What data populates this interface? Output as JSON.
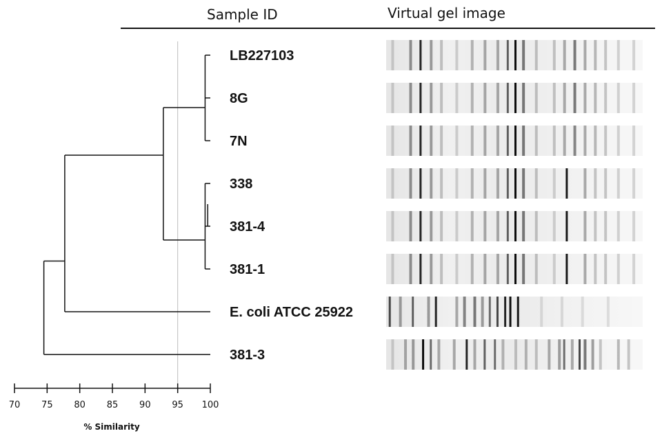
{
  "headers": {
    "sample_id": "Sample ID",
    "gel": "Virtual gel image"
  },
  "samples": [
    {
      "id": "LB227103",
      "bands": [
        [
          0.02,
          0.15
        ],
        [
          0.09,
          0.4
        ],
        [
          0.13,
          0.85
        ],
        [
          0.17,
          0.35
        ],
        [
          0.21,
          0.2
        ],
        [
          0.27,
          0.15
        ],
        [
          0.33,
          0.25
        ],
        [
          0.38,
          0.3
        ],
        [
          0.43,
          0.3
        ],
        [
          0.47,
          0.6
        ],
        [
          0.5,
          0.95
        ],
        [
          0.53,
          0.5
        ],
        [
          0.58,
          0.2
        ],
        [
          0.65,
          0.2
        ],
        [
          0.69,
          0.3
        ],
        [
          0.73,
          0.5
        ],
        [
          0.77,
          0.3
        ],
        [
          0.81,
          0.25
        ],
        [
          0.85,
          0.2
        ],
        [
          0.9,
          0.15
        ],
        [
          0.96,
          0.15
        ]
      ]
    },
    {
      "id": "8G",
      "bands": [
        [
          0.02,
          0.15
        ],
        [
          0.09,
          0.4
        ],
        [
          0.13,
          0.85
        ],
        [
          0.17,
          0.35
        ],
        [
          0.21,
          0.2
        ],
        [
          0.27,
          0.15
        ],
        [
          0.33,
          0.25
        ],
        [
          0.38,
          0.3
        ],
        [
          0.43,
          0.3
        ],
        [
          0.47,
          0.6
        ],
        [
          0.5,
          0.95
        ],
        [
          0.53,
          0.5
        ],
        [
          0.58,
          0.2
        ],
        [
          0.65,
          0.2
        ],
        [
          0.69,
          0.3
        ],
        [
          0.73,
          0.5
        ],
        [
          0.77,
          0.3
        ],
        [
          0.81,
          0.25
        ],
        [
          0.85,
          0.2
        ],
        [
          0.9,
          0.15
        ],
        [
          0.96,
          0.15
        ]
      ]
    },
    {
      "id": "7N",
      "bands": [
        [
          0.02,
          0.15
        ],
        [
          0.09,
          0.4
        ],
        [
          0.13,
          0.85
        ],
        [
          0.17,
          0.35
        ],
        [
          0.21,
          0.2
        ],
        [
          0.27,
          0.15
        ],
        [
          0.33,
          0.25
        ],
        [
          0.38,
          0.3
        ],
        [
          0.43,
          0.3
        ],
        [
          0.47,
          0.6
        ],
        [
          0.5,
          0.95
        ],
        [
          0.53,
          0.5
        ],
        [
          0.58,
          0.2
        ],
        [
          0.65,
          0.2
        ],
        [
          0.69,
          0.3
        ],
        [
          0.73,
          0.45
        ],
        [
          0.77,
          0.3
        ],
        [
          0.81,
          0.25
        ],
        [
          0.85,
          0.2
        ],
        [
          0.9,
          0.15
        ],
        [
          0.96,
          0.15
        ]
      ]
    },
    {
      "id": "338",
      "bands": [
        [
          0.02,
          0.15
        ],
        [
          0.09,
          0.4
        ],
        [
          0.13,
          0.85
        ],
        [
          0.17,
          0.35
        ],
        [
          0.21,
          0.2
        ],
        [
          0.27,
          0.15
        ],
        [
          0.33,
          0.25
        ],
        [
          0.38,
          0.3
        ],
        [
          0.43,
          0.3
        ],
        [
          0.47,
          0.6
        ],
        [
          0.5,
          0.95
        ],
        [
          0.53,
          0.5
        ],
        [
          0.58,
          0.2
        ],
        [
          0.65,
          0.15
        ],
        [
          0.7,
          0.9
        ],
        [
          0.77,
          0.3
        ],
        [
          0.81,
          0.2
        ],
        [
          0.85,
          0.2
        ],
        [
          0.9,
          0.15
        ],
        [
          0.96,
          0.15
        ]
      ]
    },
    {
      "id": "381-4",
      "bands": [
        [
          0.02,
          0.15
        ],
        [
          0.09,
          0.4
        ],
        [
          0.13,
          0.85
        ],
        [
          0.17,
          0.35
        ],
        [
          0.21,
          0.2
        ],
        [
          0.27,
          0.15
        ],
        [
          0.33,
          0.25
        ],
        [
          0.38,
          0.3
        ],
        [
          0.43,
          0.3
        ],
        [
          0.47,
          0.6
        ],
        [
          0.5,
          0.95
        ],
        [
          0.53,
          0.5
        ],
        [
          0.58,
          0.2
        ],
        [
          0.65,
          0.15
        ],
        [
          0.7,
          0.9
        ],
        [
          0.77,
          0.3
        ],
        [
          0.81,
          0.2
        ],
        [
          0.85,
          0.2
        ],
        [
          0.9,
          0.15
        ],
        [
          0.96,
          0.15
        ]
      ]
    },
    {
      "id": "381-1",
      "bands": [
        [
          0.02,
          0.15
        ],
        [
          0.09,
          0.4
        ],
        [
          0.13,
          0.85
        ],
        [
          0.17,
          0.35
        ],
        [
          0.21,
          0.2
        ],
        [
          0.27,
          0.15
        ],
        [
          0.33,
          0.25
        ],
        [
          0.38,
          0.3
        ],
        [
          0.43,
          0.3
        ],
        [
          0.47,
          0.6
        ],
        [
          0.5,
          0.95
        ],
        [
          0.53,
          0.5
        ],
        [
          0.58,
          0.2
        ],
        [
          0.65,
          0.15
        ],
        [
          0.7,
          0.9
        ],
        [
          0.77,
          0.3
        ],
        [
          0.81,
          0.2
        ],
        [
          0.85,
          0.2
        ],
        [
          0.9,
          0.15
        ],
        [
          0.96,
          0.15
        ]
      ]
    },
    {
      "id": "E. coli ATCC 25922",
      "bands": [
        [
          0.01,
          0.7
        ],
        [
          0.05,
          0.35
        ],
        [
          0.1,
          0.6
        ],
        [
          0.16,
          0.35
        ],
        [
          0.19,
          0.85
        ],
        [
          0.27,
          0.3
        ],
        [
          0.3,
          0.45
        ],
        [
          0.34,
          0.5
        ],
        [
          0.37,
          0.35
        ],
        [
          0.4,
          0.55
        ],
        [
          0.43,
          0.7
        ],
        [
          0.46,
          0.85
        ],
        [
          0.48,
          0.95
        ],
        [
          0.51,
          0.9
        ],
        [
          0.6,
          0.1
        ],
        [
          0.68,
          0.1
        ],
        [
          0.76,
          0.1
        ],
        [
          0.86,
          0.1
        ]
      ]
    },
    {
      "id": "381-3",
      "bands": [
        [
          0.02,
          0.15
        ],
        [
          0.07,
          0.3
        ],
        [
          0.1,
          0.35
        ],
        [
          0.14,
          0.95
        ],
        [
          0.17,
          0.55
        ],
        [
          0.2,
          0.3
        ],
        [
          0.26,
          0.3
        ],
        [
          0.31,
          0.85
        ],
        [
          0.34,
          0.3
        ],
        [
          0.38,
          0.6
        ],
        [
          0.42,
          0.55
        ],
        [
          0.45,
          0.25
        ],
        [
          0.5,
          0.2
        ],
        [
          0.54,
          0.25
        ],
        [
          0.58,
          0.2
        ],
        [
          0.63,
          0.3
        ],
        [
          0.67,
          0.35
        ],
        [
          0.69,
          0.55
        ],
        [
          0.72,
          0.3
        ],
        [
          0.75,
          0.7
        ],
        [
          0.77,
          0.5
        ],
        [
          0.8,
          0.35
        ],
        [
          0.83,
          0.2
        ],
        [
          0.9,
          0.25
        ],
        [
          0.94,
          0.2
        ]
      ]
    }
  ],
  "dendrogram": {
    "nodes": [
      {
        "name": "node-lb-8g-7n",
        "similarity": 99.2
      },
      {
        "name": "node-338-3814",
        "similarity": 99.6
      },
      {
        "name": "node-338-3814-3811",
        "similarity": 99.2
      },
      {
        "name": "node-group-338",
        "similarity": 93.4
      },
      {
        "name": "node-main-cluster",
        "similarity": 92.8
      },
      {
        "name": "node-with-ecoli",
        "similarity": 77.7
      },
      {
        "name": "node-root",
        "similarity": 74.5
      }
    ],
    "cutoff": 95
  },
  "axis": {
    "ticks": [
      "70",
      "75",
      "80",
      "85",
      "90",
      "95",
      "100"
    ],
    "label": "% Similarity",
    "min": 70,
    "max": 100
  },
  "colors": {
    "line": "#111111",
    "cutoff": "#bdbdbd"
  }
}
